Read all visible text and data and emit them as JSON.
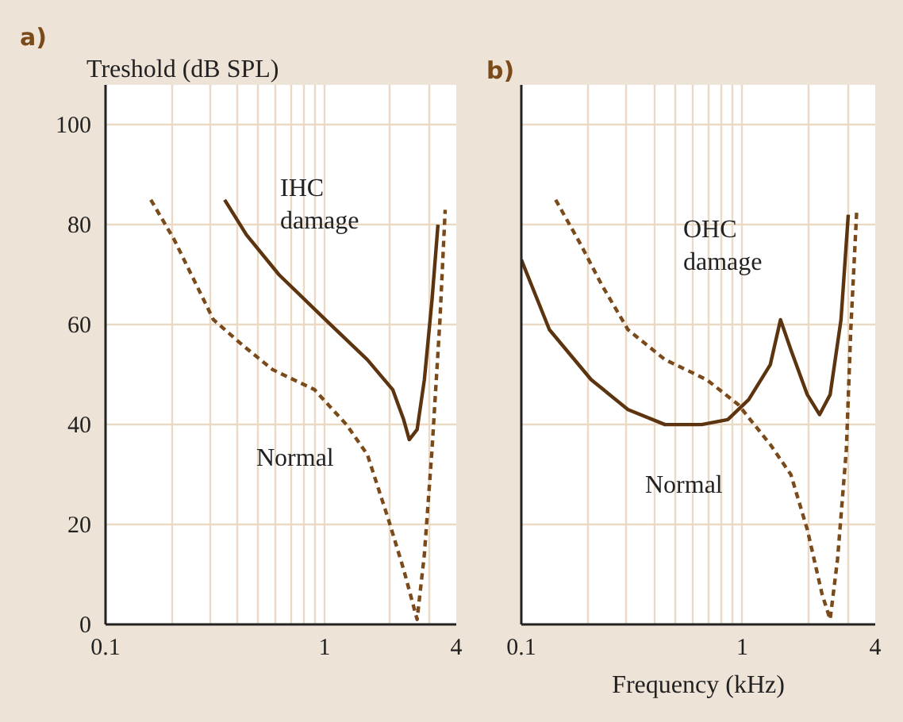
{
  "chart_data": [
    {
      "type": "line",
      "title": "a)",
      "ylabel": "Treshold (dB SPL)",
      "log": "x",
      "xlim": [
        0.1,
        4
      ],
      "ylim": [
        0,
        108
      ],
      "xticks": [
        0.1,
        {
          "value": 0.2,
          "label": null
        },
        {
          "value": 0.3,
          "label": null
        },
        {
          "value": 0.4,
          "label": null
        },
        {
          "value": 0.5,
          "label": null
        },
        {
          "value": 0.6,
          "label": null
        },
        {
          "value": 0.7,
          "label": null
        },
        {
          "value": 0.8,
          "label": null
        },
        {
          "value": 0.9,
          "label": null
        },
        1,
        {
          "value": 2,
          "label": null
        },
        {
          "value": 3,
          "label": null
        },
        4
      ],
      "yticks": [
        0,
        20,
        40,
        60,
        80,
        100
      ],
      "grid": true,
      "series": [
        {
          "color": "#7a4a1a",
          "line_style": "dashed",
          "x": [
            0.161,
            0.206,
            0.311,
            0.42,
            0.58,
            0.9,
            1.26,
            1.57,
            1.96,
            2.3,
            2.65,
            2.86,
            3.1,
            3.37,
            3.56
          ],
          "values": [
            85,
            77,
            61,
            56,
            51,
            47,
            40,
            34,
            21,
            11,
            1,
            14,
            35,
            61,
            83
          ]
        },
        {
          "color": "#5c3510",
          "line_style": "solid",
          "x": [
            0.35,
            0.44,
            0.62,
            1.01,
            1.57,
            2.05,
            2.3,
            2.44,
            2.65,
            2.86,
            3.1,
            3.3
          ],
          "values": [
            85,
            78,
            70,
            61,
            53,
            47,
            41,
            37,
            39,
            49,
            65,
            80
          ]
        }
      ],
      "annotations": [
        "IHC\ndamage",
        "Normal"
      ]
    },
    {
      "type": "line",
      "title": "b)",
      "xlabel": "Frequency (kHz)",
      "log": "x",
      "xlim": [
        0.1,
        4
      ],
      "ylim": [
        0,
        108
      ],
      "tick_labels": "x",
      "xticks": [
        0.1,
        {
          "value": 0.2,
          "label": null
        },
        {
          "value": 0.3,
          "label": null
        },
        {
          "value": 0.4,
          "label": null
        },
        {
          "value": 0.5,
          "label": null
        },
        {
          "value": 0.6,
          "label": null
        },
        {
          "value": 0.7,
          "label": null
        },
        {
          "value": 0.8,
          "label": null
        },
        {
          "value": 0.9,
          "label": null
        },
        1,
        {
          "value": 2,
          "label": null
        },
        {
          "value": 3,
          "label": null
        },
        4
      ],
      "yticks": [
        0,
        20,
        40,
        60,
        80,
        100
      ],
      "grid": true,
      "series": [
        {
          "color": "#7a4a1a",
          "line_style": "dashed",
          "x": [
            0.143,
            0.186,
            0.231,
            0.304,
            0.447,
            0.69,
            0.96,
            1.34,
            1.66,
            1.97,
            2.3,
            2.5,
            2.7,
            2.96,
            3.1,
            3.3
          ],
          "values": [
            85,
            76,
            68,
            59,
            53,
            49,
            44,
            36,
            30,
            19,
            6,
            1,
            13,
            35,
            59,
            83
          ]
        },
        {
          "color": "#5c3510",
          "line_style": "solid",
          "x": [
            0.1,
            0.134,
            0.207,
            0.304,
            0.447,
            0.655,
            0.86,
            1.07,
            1.34,
            1.49,
            1.66,
            1.97,
            2.24,
            2.5,
            2.8,
            3.02
          ],
          "values": [
            73,
            59,
            49,
            43,
            40,
            40,
            41,
            45,
            52,
            61,
            55,
            46,
            42,
            46,
            61,
            82
          ]
        }
      ],
      "annotations": [
        "OHC\ndamage",
        "Normal"
      ]
    }
  ]
}
